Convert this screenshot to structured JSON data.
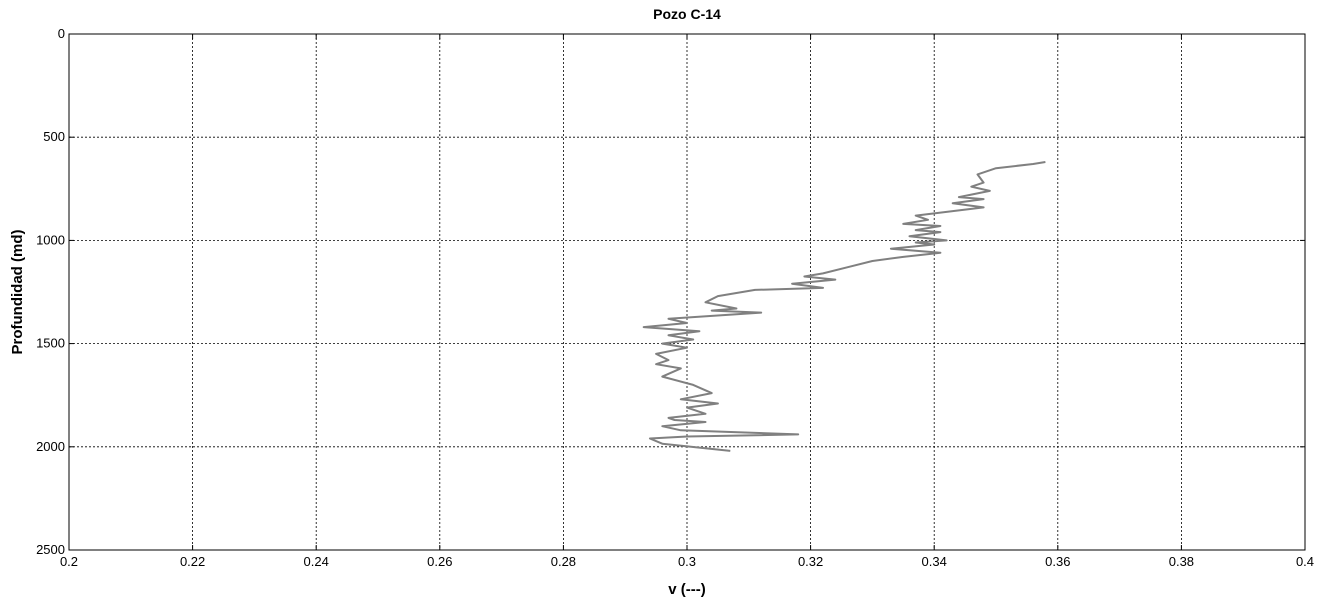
{
  "chart_data": {
    "type": "line",
    "title": "Pozo C-14",
    "xlabel": "v (---)",
    "ylabel": "Profundidad (md)",
    "xlim": [
      0.2,
      0.4
    ],
    "ylim": [
      0,
      2500
    ],
    "y_reversed": true,
    "grid": true,
    "x_ticks": [
      "0.2",
      "0.22",
      "0.24",
      "0.26",
      "0.28",
      "0.3",
      "0.32",
      "0.34",
      "0.36",
      "0.38",
      "0.4"
    ],
    "y_ticks": [
      "0",
      "500",
      "1000",
      "1500",
      "2000",
      "2500"
    ],
    "series": [
      {
        "name": "",
        "color": "#808080",
        "x": [
          0.358,
          0.356,
          0.35,
          0.347,
          0.348,
          0.346,
          0.349,
          0.344,
          0.348,
          0.343,
          0.348,
          0.337,
          0.339,
          0.335,
          0.341,
          0.337,
          0.341,
          0.336,
          0.342,
          0.337,
          0.34,
          0.333,
          0.341,
          0.335,
          0.33,
          0.326,
          0.322,
          0.319,
          0.324,
          0.317,
          0.322,
          0.311,
          0.305,
          0.303,
          0.308,
          0.304,
          0.312,
          0.297,
          0.3,
          0.293,
          0.302,
          0.297,
          0.301,
          0.296,
          0.3,
          0.295,
          0.297,
          0.295,
          0.299,
          0.296,
          0.301,
          0.304,
          0.299,
          0.305,
          0.3,
          0.303,
          0.297,
          0.298,
          0.303,
          0.296,
          0.299,
          0.318,
          0.3,
          0.294,
          0.296,
          0.307
        ],
        "y": [
          620,
          630,
          650,
          680,
          720,
          740,
          760,
          790,
          800,
          820,
          840,
          880,
          900,
          920,
          930,
          950,
          960,
          980,
          1000,
          1010,
          1020,
          1040,
          1060,
          1080,
          1100,
          1130,
          1160,
          1175,
          1190,
          1210,
          1230,
          1240,
          1270,
          1300,
          1330,
          1340,
          1350,
          1380,
          1400,
          1420,
          1440,
          1460,
          1480,
          1500,
          1520,
          1550,
          1580,
          1600,
          1620,
          1660,
          1700,
          1740,
          1770,
          1790,
          1810,
          1840,
          1860,
          1870,
          1880,
          1900,
          1920,
          1940,
          1950,
          1960,
          1985,
          2020
        ]
      }
    ]
  }
}
